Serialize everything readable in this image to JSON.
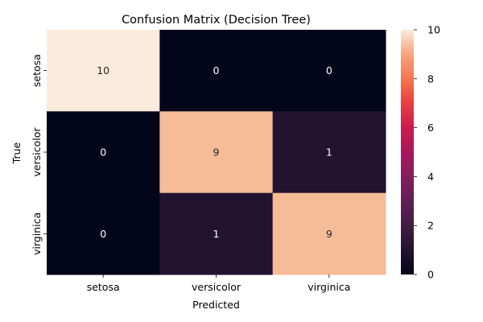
{
  "chart_data": {
    "type": "heatmap",
    "title": "Confusion Matrix (Decision Tree)",
    "xlabel": "Predicted",
    "ylabel": "True",
    "x_categories": [
      "setosa",
      "versicolor",
      "virginica"
    ],
    "y_categories": [
      "setosa",
      "versicolor",
      "virginica"
    ],
    "values": [
      [
        10,
        0,
        0
      ],
      [
        0,
        9,
        1
      ],
      [
        0,
        1,
        9
      ]
    ],
    "colorbar": {
      "min": 0,
      "max": 10,
      "ticks": [
        "0",
        "2",
        "4",
        "6",
        "8",
        "10"
      ]
    },
    "colormap": "rocket",
    "colors": {
      "v0": "#03051a",
      "v1": "#221331",
      "v9": "#f6bb97",
      "v10": "#faebdd",
      "annot_dark_bg": "#ffffff",
      "annot_light_bg": "#262626"
    }
  }
}
